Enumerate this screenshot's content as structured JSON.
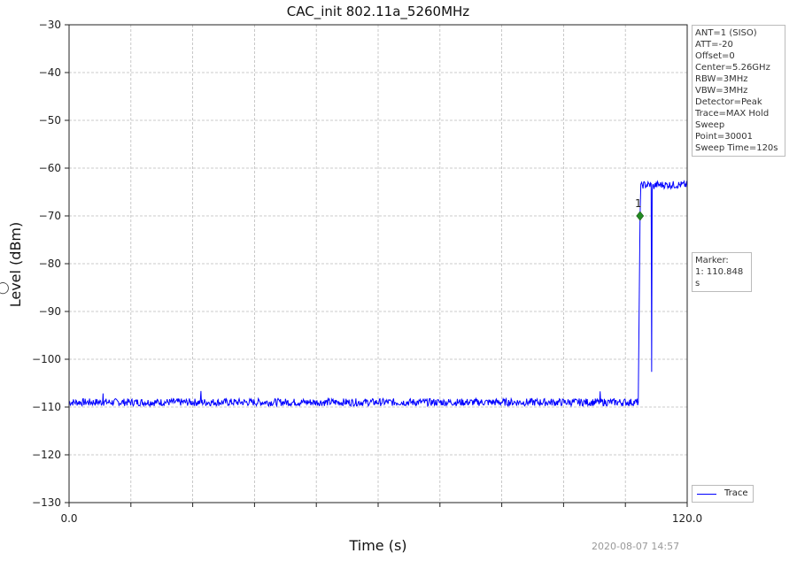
{
  "chart_data": {
    "type": "line",
    "title": "CAC_init 802.11a_5260MHz",
    "xlabel": "Time (s)",
    "ylabel": "Level (dBm)",
    "xlim": [
      0.0,
      120.0
    ],
    "ylim": [
      -130,
      -30
    ],
    "x_tick_labels": [
      "0.0",
      "120.0"
    ],
    "x_minor_ticks": [
      12,
      24,
      36,
      48,
      60,
      72,
      84,
      96,
      108
    ],
    "y_ticks": [
      -30,
      -40,
      -50,
      -60,
      -70,
      -80,
      -90,
      -100,
      -110,
      -120,
      -130
    ],
    "y_tick_labels": [
      "−30",
      "−40",
      "−50",
      "−60",
      "−70",
      "−80",
      "−90",
      "−100",
      "−110",
      "−120",
      "−130"
    ],
    "grid": true,
    "series": [
      {
        "name": "Trace",
        "color": "#0000ff",
        "x": [
          0,
          6.5,
          6.6,
          6.7,
          20,
          25.5,
          25.6,
          25.7,
          60,
          103,
          103.1,
          103.2,
          110.5,
          110.85,
          111.0,
          111.3,
          113.0,
          113.1,
          113.2,
          114.0,
          116.0,
          118.0,
          120.0
        ],
        "y": [
          -109,
          -109,
          -106.5,
          -109,
          -109,
          -109,
          -106.8,
          -109,
          -109,
          -109,
          -107.5,
          -109,
          -109,
          -70,
          -64,
          -63.5,
          -63.5,
          -103,
          -64,
          -63.5,
          -63.5,
          -63.5,
          -63.5
        ]
      }
    ],
    "marker": {
      "x": 110.848,
      "y": -70,
      "label": "1",
      "color": "#228B22"
    },
    "legend": {
      "position": "bottom-right-outside",
      "entries": [
        "Trace"
      ]
    }
  },
  "settings": {
    "lines": [
      "ANT=1 (SISO)",
      "ATT=-20",
      "Offset=0",
      "Center=5.26GHz",
      "RBW=3MHz",
      "VBW=3MHz",
      "Detector=Peak",
      "Trace=MAX Hold",
      "Sweep Point=30001",
      "Sweep Time=120s"
    ]
  },
  "marker_box": {
    "title": "Marker:",
    "value": "1: 110.848 s"
  },
  "footer": {
    "timestamp": "2020-08-07 14:57"
  }
}
